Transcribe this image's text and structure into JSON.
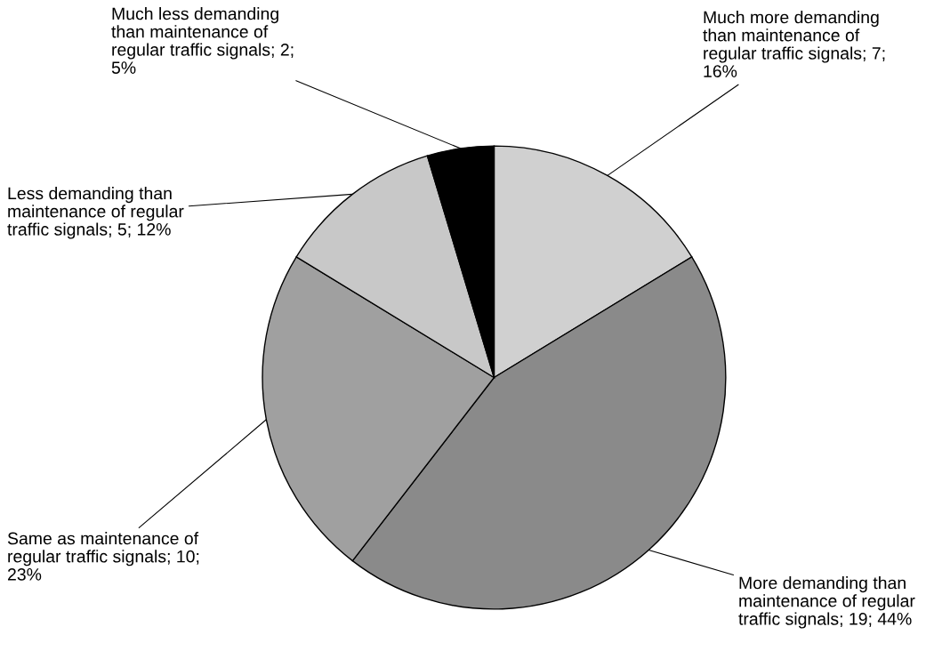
{
  "chart_data": {
    "type": "pie",
    "categories": [
      "Much more demanding\nthan maintenance of\nregular traffic signals",
      "More demanding than\nmaintenance of regular\ntraffic signals",
      "Same as maintenance of\nregular traffic signals",
      "Less demanding than\nmaintenance of regular\ntraffic signals",
      "Much less demanding\nthan maintenance of\nregular traffic signals"
    ],
    "values": [
      7,
      19,
      10,
      5,
      2
    ],
    "value_labels": [
      "7;\n16%",
      "19; 44%",
      "10;\n23%",
      "5; 12%",
      "2;\n5%"
    ],
    "colors": [
      "#d0d0d0",
      "#8a8a8a",
      "#a0a0a0",
      "#c8c8c8",
      "#000000"
    ]
  }
}
